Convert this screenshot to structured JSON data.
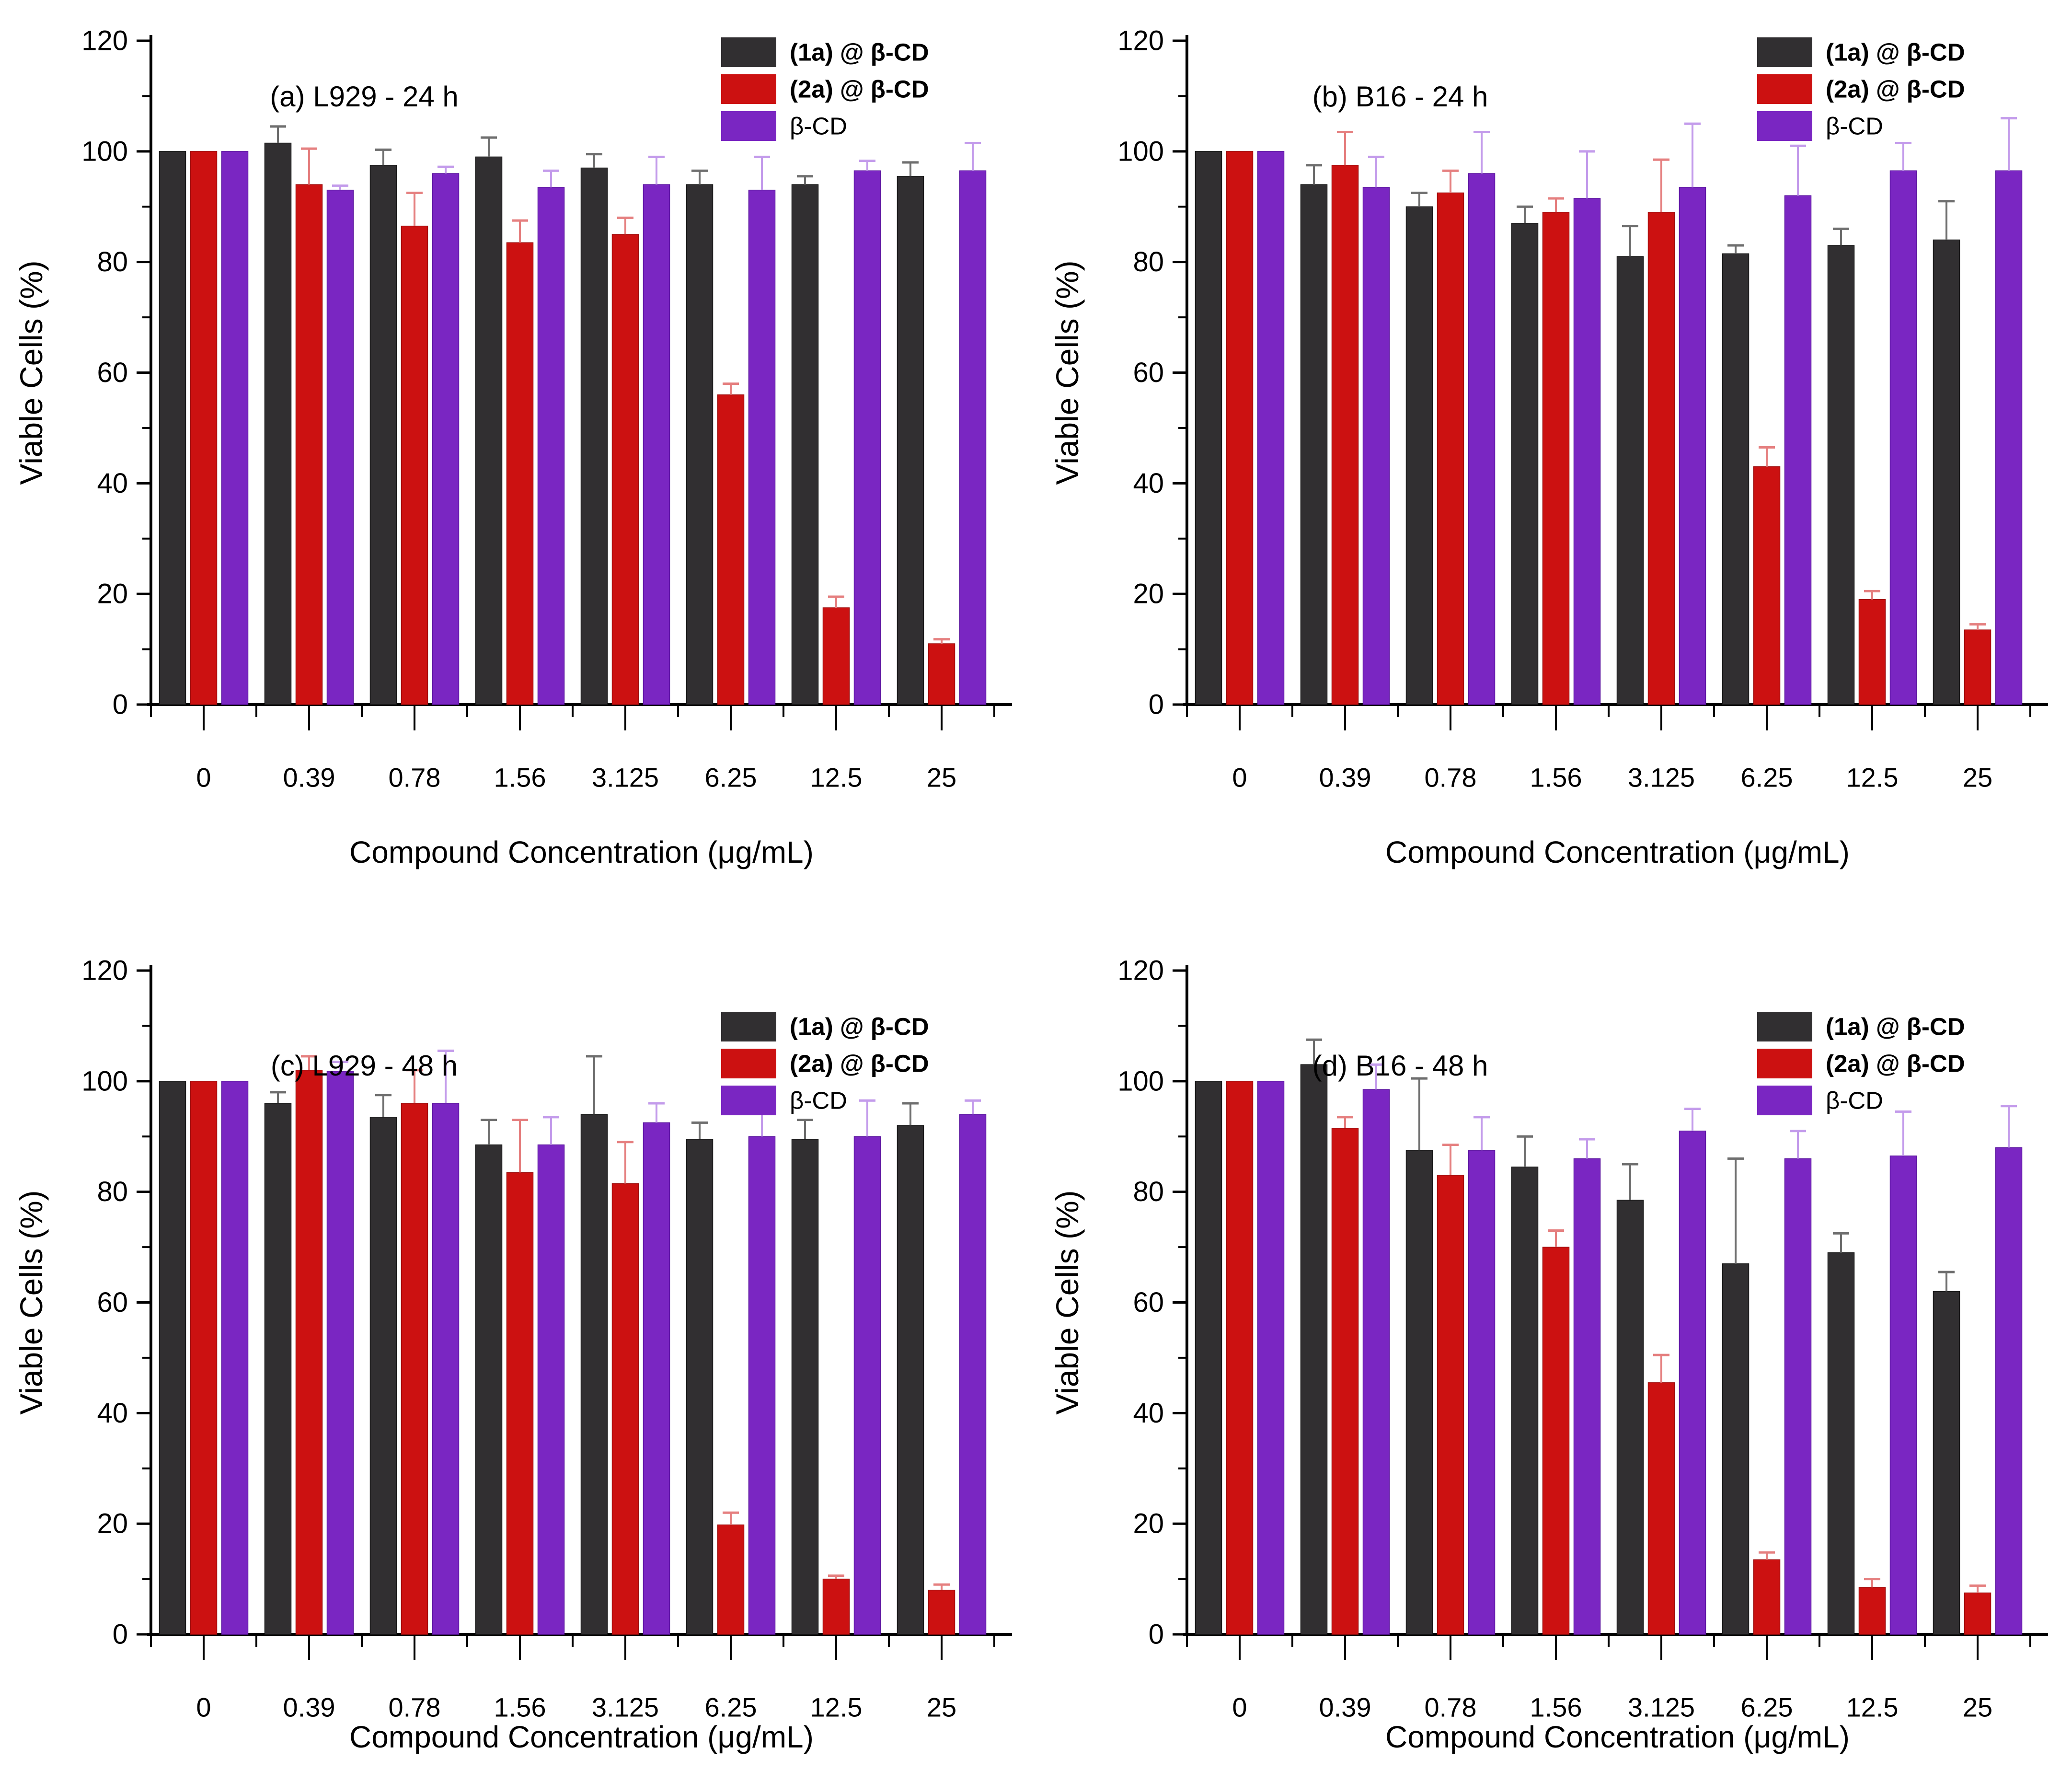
{
  "figure": {
    "background": "#ffffff",
    "y_axis_label": "Viable Cells (%)",
    "x_axis_label": "Compound Concentration (μg/mL)",
    "ylim": [
      0,
      120
    ],
    "y_major_ticks": [
      0,
      20,
      40,
      60,
      80,
      100,
      120
    ],
    "y_minor_ticks": [
      10,
      30,
      50,
      70,
      90,
      110
    ],
    "grid": "off",
    "categories": [
      "0",
      "0.39",
      "0.78",
      "1.56",
      "3.125",
      "6.25",
      "12.5",
      "25"
    ],
    "legend": {
      "position": "top-right-inside",
      "entries": [
        {
          "label": "(1a) @ β-CD",
          "bold": true
        },
        {
          "label": "(2a) @ β-CD",
          "bold": true
        },
        {
          "label": "β-CD",
          "bold": false
        }
      ]
    },
    "series_colors": [
      "#312F31",
      "#CC1111",
      "#7A26C2"
    ],
    "series_edge_colors": [
      "#161616",
      "#9E0C0C",
      "#5C15A0"
    ],
    "error_bar_colors": [
      "#6E6E6E",
      "#E57F7F",
      "#C39BEB"
    ],
    "axis_color": "#000000"
  },
  "chart_data": [
    {
      "id": "a",
      "type": "bar",
      "title": "(a) L929 - 24 h",
      "row": 0,
      "categories": [
        "0",
        "0.39",
        "0.78",
        "1.56",
        "3.125",
        "6.25",
        "12.5",
        "25"
      ],
      "series": [
        {
          "name": "(1a) @ β-CD",
          "values": [
            100,
            101.5,
            97.5,
            99,
            97,
            94,
            94,
            95.5
          ],
          "errors": [
            0,
            3,
            2.8,
            3.5,
            2.5,
            2.5,
            1.5,
            2.5
          ]
        },
        {
          "name": "(2a) @ β-CD",
          "values": [
            100,
            94,
            86.5,
            83.5,
            85,
            56,
            17.5,
            11
          ],
          "errors": [
            0,
            6.5,
            6,
            4,
            3,
            2,
            2,
            0.8
          ]
        },
        {
          "name": "β-CD",
          "values": [
            100,
            93,
            96,
            93.5,
            94,
            93,
            96.5,
            96.5
          ],
          "errors": [
            0,
            0.8,
            1.2,
            3,
            5,
            6,
            1.8,
            5
          ]
        }
      ]
    },
    {
      "id": "b",
      "type": "bar",
      "title": "(b) B16 - 24 h",
      "row": 0,
      "categories": [
        "0",
        "0.39",
        "0.78",
        "1.56",
        "3.125",
        "6.25",
        "12.5",
        "25"
      ],
      "series": [
        {
          "name": "(1a) @ β-CD",
          "values": [
            100,
            94,
            90,
            87,
            81,
            81.5,
            83,
            84
          ],
          "errors": [
            0,
            3.5,
            2.5,
            3,
            5.5,
            1.5,
            3,
            7
          ]
        },
        {
          "name": "(2a) @ β-CD",
          "values": [
            100,
            97.5,
            92.5,
            89,
            89,
            43,
            19,
            13.5
          ],
          "errors": [
            0,
            6,
            4,
            2.5,
            9.5,
            3.5,
            1.5,
            1
          ]
        },
        {
          "name": "β-CD",
          "values": [
            100,
            93.5,
            96,
            91.5,
            93.5,
            92,
            96.5,
            96.5
          ],
          "errors": [
            0,
            5.5,
            7.5,
            8.5,
            11.5,
            9,
            5,
            9.5
          ]
        }
      ]
    },
    {
      "id": "c",
      "type": "bar",
      "title": "(c) L929 - 48 h",
      "row": 1,
      "categories": [
        "0",
        "0.39",
        "0.78",
        "1.56",
        "3.125",
        "6.25",
        "12.5",
        "25"
      ],
      "series": [
        {
          "name": "(1a) @ β-CD",
          "values": [
            100,
            96,
            93.5,
            88.5,
            94,
            89.5,
            89.5,
            92
          ],
          "errors": [
            0,
            2,
            4,
            4.5,
            10.5,
            3,
            3.5,
            4
          ]
        },
        {
          "name": "(2a) @ β-CD",
          "values": [
            100,
            102,
            96,
            83.5,
            81.5,
            19.8,
            10,
            8
          ],
          "errors": [
            0,
            2.5,
            6,
            9.5,
            7.5,
            2.2,
            0.6,
            1
          ]
        },
        {
          "name": "β-CD",
          "values": [
            100,
            101.8,
            96,
            88.5,
            92.5,
            90,
            90,
            94
          ],
          "errors": [
            0,
            1.7,
            9.5,
            5,
            3.5,
            5.5,
            6.5,
            2.5
          ]
        }
      ]
    },
    {
      "id": "d",
      "type": "bar",
      "title": "(d) B16 - 48 h",
      "row": 1,
      "categories": [
        "0",
        "0.39",
        "0.78",
        "1.56",
        "3.125",
        "6.25",
        "12.5",
        "25"
      ],
      "series": [
        {
          "name": "(1a) @ β-CD",
          "values": [
            100,
            103,
            87.5,
            84.5,
            78.5,
            67,
            69,
            62
          ],
          "errors": [
            0,
            4.5,
            13,
            5.5,
            6.5,
            19,
            3.5,
            3.5
          ]
        },
        {
          "name": "(2a) @ β-CD",
          "values": [
            100,
            91.5,
            83,
            70,
            45.5,
            13.5,
            8.5,
            7.5
          ],
          "errors": [
            0,
            2,
            5.5,
            3,
            5,
            1.3,
            1.5,
            1.3
          ]
        },
        {
          "name": "β-CD",
          "values": [
            100,
            98.5,
            87.5,
            86,
            91,
            86,
            86.5,
            88
          ],
          "errors": [
            0,
            4.5,
            6,
            3.5,
            4,
            5,
            8,
            7.5
          ]
        }
      ]
    }
  ]
}
